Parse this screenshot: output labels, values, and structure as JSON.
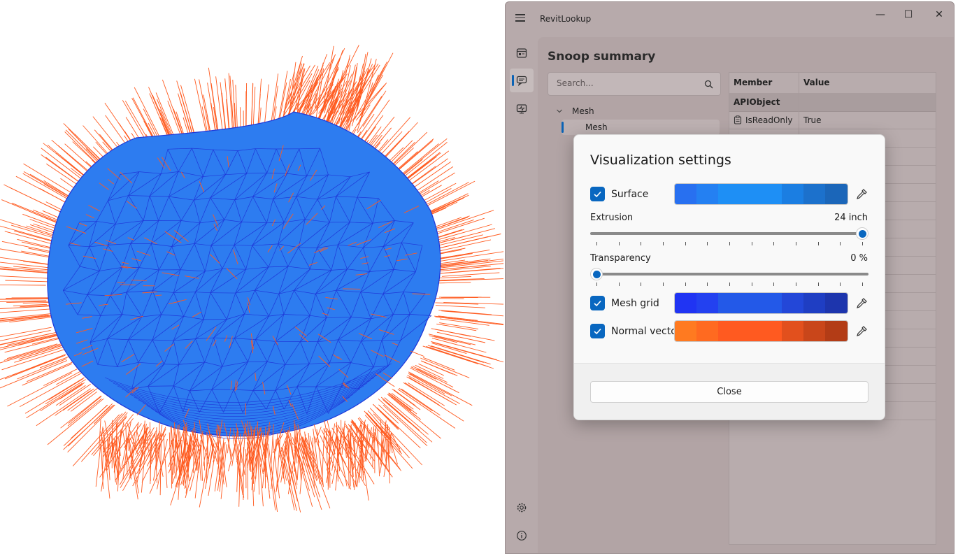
{
  "app": {
    "title": "RevitLookup"
  },
  "window_controls": {
    "minimize": "—",
    "maximize": "☐",
    "close": "✕"
  },
  "nav": {
    "items": [
      "dashboard-icon",
      "snoop-summary-icon",
      "events-monitor-icon"
    ],
    "bottom": [
      "settings-icon",
      "about-icon"
    ],
    "active_index": 1
  },
  "page": {
    "title": "Snoop summary"
  },
  "search": {
    "placeholder": "Search..."
  },
  "tree": {
    "root": "Mesh",
    "child": "Mesh"
  },
  "grid": {
    "headers": {
      "member": "Member",
      "value": "Value"
    },
    "group": "APIObject",
    "rows": [
      {
        "member": "IsReadOnly",
        "value": "True"
      }
    ]
  },
  "dialog": {
    "title": "Visualization settings",
    "surface": {
      "label": "Surface",
      "checked": true,
      "colors": [
        "#2870f0",
        "#2480f2",
        "#1e8ff5",
        "#1b7ee2",
        "#1c71cc",
        "#1b66b9"
      ]
    },
    "extrusion": {
      "label": "Extrusion",
      "value": "24 inch",
      "fraction": 1.0
    },
    "transparency": {
      "label": "Transparency",
      "value": "0 %",
      "fraction": 0.0
    },
    "mesh_grid": {
      "label": "Mesh grid",
      "checked": true,
      "colors": [
        "#2034f3",
        "#2341f0",
        "#2359e8",
        "#2347d8",
        "#1f3ec3",
        "#1d35ad"
      ]
    },
    "normal_vector": {
      "label": "Normal vector",
      "checked": true,
      "colors": [
        "#ff7a20",
        "#ff6a20",
        "#ff5a20",
        "#e2501d",
        "#c9461a",
        "#b33c16"
      ]
    },
    "close_label": "Close"
  },
  "viewport": {
    "surface_color": "#2d7cf0",
    "grid_color": "#1f37d8",
    "vector_color": "#ff5a1f"
  }
}
